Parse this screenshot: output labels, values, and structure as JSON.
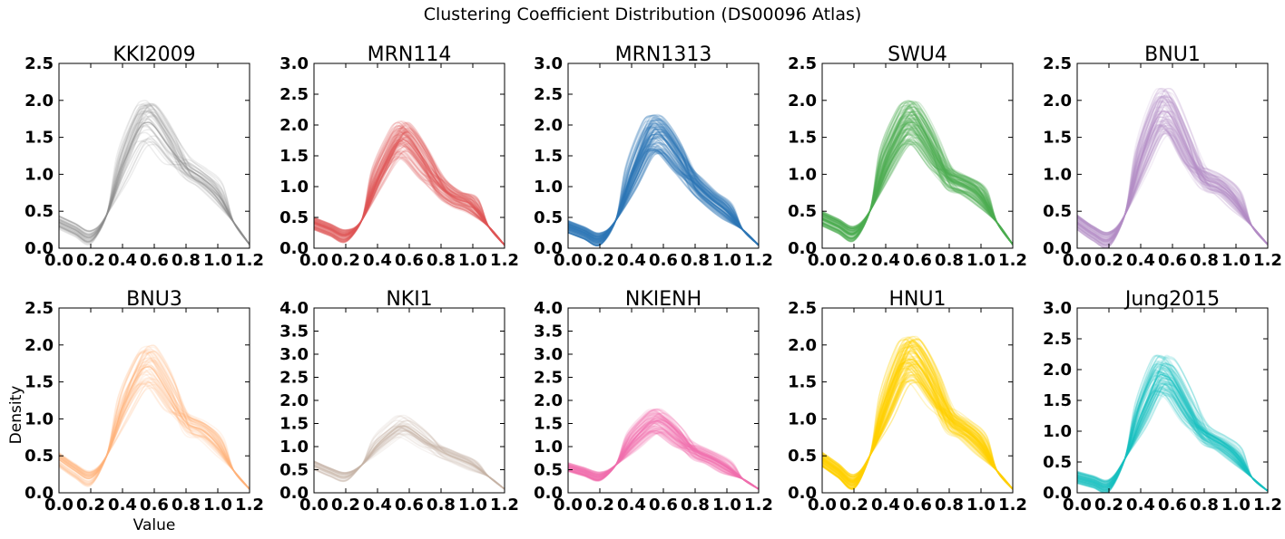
{
  "figure": {
    "title": "Clustering Coefficient Distribution (DS00096 Atlas)",
    "xlabel": "Value",
    "ylabel": "Density"
  },
  "chart_data": [
    {
      "type": "line",
      "title": "KKI2009",
      "color": "#8c8c8c",
      "xlim": [
        0,
        1.2
      ],
      "ylim": [
        0,
        2.5
      ],
      "xticks": [
        "0.0",
        "0.2",
        "0.4",
        "0.6",
        "0.8",
        "1.0",
        "1.2"
      ],
      "yticks": [
        "0.0",
        "0.5",
        "1.0",
        "1.5",
        "2.0",
        "2.5"
      ],
      "curve_count": 40,
      "typical_curve": {
        "x": [
          0,
          0.1,
          0.2,
          0.3,
          0.4,
          0.5,
          0.55,
          0.6,
          0.7,
          0.8,
          0.9,
          1.0,
          1.1,
          1.2
        ],
        "y": [
          0.35,
          0.25,
          0.15,
          0.45,
          1.1,
          1.6,
          1.7,
          1.65,
          1.35,
          1.1,
          0.95,
          0.75,
          0.35,
          0.05
        ]
      }
    },
    {
      "type": "line",
      "title": "MRN114",
      "color": "#e15759",
      "xlim": [
        0,
        1.2
      ],
      "ylim": [
        0,
        3.0
      ],
      "xticks": [
        "0.0",
        "0.2",
        "0.4",
        "0.6",
        "0.8",
        "1.0",
        "1.2"
      ],
      "yticks": [
        "0.0",
        "0.5",
        "1.0",
        "1.5",
        "2.0",
        "2.5",
        "3.0"
      ],
      "curve_count": 100,
      "typical_curve": {
        "x": [
          0,
          0.1,
          0.2,
          0.3,
          0.4,
          0.5,
          0.55,
          0.6,
          0.7,
          0.8,
          0.9,
          1.0,
          1.1,
          1.2
        ],
        "y": [
          0.4,
          0.3,
          0.2,
          0.45,
          1.1,
          1.6,
          1.75,
          1.7,
          1.35,
          1.0,
          0.8,
          0.7,
          0.35,
          0.05
        ]
      }
    },
    {
      "type": "line",
      "title": "MRN1313",
      "color": "#2e78b7",
      "xlim": [
        0,
        1.2
      ],
      "ylim": [
        0,
        3.0
      ],
      "xticks": [
        "0.0",
        "0.2",
        "0.4",
        "0.6",
        "0.8",
        "1.0",
        "1.2"
      ],
      "yticks": [
        "0.0",
        "0.5",
        "1.0",
        "1.5",
        "2.0",
        "2.5",
        "3.0"
      ],
      "curve_count": 1300,
      "typical_curve": {
        "x": [
          0,
          0.1,
          0.2,
          0.3,
          0.4,
          0.5,
          0.55,
          0.6,
          0.7,
          0.8,
          0.9,
          1.0,
          1.1,
          1.2
        ],
        "y": [
          0.35,
          0.25,
          0.15,
          0.45,
          1.15,
          1.75,
          1.85,
          1.8,
          1.45,
          1.05,
          0.8,
          0.6,
          0.3,
          0.05
        ]
      }
    },
    {
      "type": "line",
      "title": "SWU4",
      "color": "#4caf50",
      "xlim": [
        0,
        1.2
      ],
      "ylim": [
        0,
        2.5
      ],
      "xticks": [
        "0.0",
        "0.2",
        "0.4",
        "0.6",
        "0.8",
        "1.0",
        "1.2"
      ],
      "yticks": [
        "0.0",
        "0.5",
        "1.0",
        "1.5",
        "2.0",
        "2.5"
      ],
      "curve_count": 230,
      "typical_curve": {
        "x": [
          0,
          0.1,
          0.2,
          0.3,
          0.4,
          0.5,
          0.55,
          0.6,
          0.7,
          0.8,
          0.9,
          1.0,
          1.1,
          1.2
        ],
        "y": [
          0.4,
          0.3,
          0.2,
          0.5,
          1.15,
          1.6,
          1.7,
          1.65,
          1.3,
          0.95,
          0.85,
          0.7,
          0.35,
          0.05
        ]
      }
    },
    {
      "type": "line",
      "title": "BNU1",
      "color": "#b58cc7",
      "xlim": [
        0,
        1.2
      ],
      "ylim": [
        0,
        2.5
      ],
      "xticks": [
        "0.0",
        "0.2",
        "0.4",
        "0.6",
        "0.8",
        "1.0",
        "1.2"
      ],
      "yticks": [
        "0.0",
        "0.5",
        "1.0",
        "1.5",
        "2.0",
        "2.5"
      ],
      "curve_count": 110,
      "typical_curve": {
        "x": [
          0,
          0.1,
          0.2,
          0.3,
          0.4,
          0.5,
          0.55,
          0.6,
          0.7,
          0.8,
          0.9,
          1.0,
          1.1,
          1.2
        ],
        "y": [
          0.35,
          0.2,
          0.12,
          0.45,
          1.2,
          1.75,
          1.85,
          1.75,
          1.3,
          0.95,
          0.85,
          0.65,
          0.3,
          0.05
        ]
      }
    },
    {
      "type": "line",
      "title": "BNU3",
      "color": "#ffb27a",
      "xlim": [
        0,
        1.2
      ],
      "ylim": [
        0,
        2.5
      ],
      "xticks": [
        "0.0",
        "0.2",
        "0.4",
        "0.6",
        "0.8",
        "1.0",
        "1.2"
      ],
      "yticks": [
        "0.0",
        "0.5",
        "1.0",
        "1.5",
        "2.0",
        "2.5"
      ],
      "curve_count": 50,
      "typical_curve": {
        "x": [
          0,
          0.1,
          0.2,
          0.3,
          0.4,
          0.5,
          0.55,
          0.6,
          0.7,
          0.8,
          0.9,
          1.0,
          1.1,
          1.2
        ],
        "y": [
          0.45,
          0.3,
          0.2,
          0.5,
          1.15,
          1.6,
          1.7,
          1.65,
          1.3,
          0.95,
          0.85,
          0.65,
          0.3,
          0.05
        ]
      }
    },
    {
      "type": "line",
      "title": "NKI1",
      "color": "#c8b6a6",
      "xlim": [
        0,
        1.2
      ],
      "ylim": [
        0,
        4.0
      ],
      "xticks": [
        "0.0",
        "0.2",
        "0.4",
        "0.6",
        "0.8",
        "1.0",
        "1.2"
      ],
      "yticks": [
        "0.0",
        "0.5",
        "1.0",
        "1.5",
        "2.0",
        "2.5",
        "3.0",
        "3.5",
        "4.0"
      ],
      "curve_count": 40,
      "typical_curve": {
        "x": [
          0,
          0.1,
          0.2,
          0.3,
          0.4,
          0.5,
          0.55,
          0.6,
          0.7,
          0.8,
          0.9,
          1.0,
          1.1,
          1.2
        ],
        "y": [
          0.6,
          0.45,
          0.35,
          0.6,
          1.05,
          1.35,
          1.45,
          1.4,
          1.15,
          0.9,
          0.75,
          0.6,
          0.35,
          0.08
        ]
      }
    },
    {
      "type": "line",
      "title": "NKIENH",
      "color": "#f06fb0",
      "xlim": [
        0,
        1.2
      ],
      "ylim": [
        0,
        4.0
      ],
      "xticks": [
        "0.0",
        "0.2",
        "0.4",
        "0.6",
        "0.8",
        "1.0",
        "1.2"
      ],
      "yticks": [
        "0.0",
        "0.5",
        "1.0",
        "1.5",
        "2.0",
        "2.5",
        "3.0",
        "3.5",
        "4.0"
      ],
      "curve_count": 200,
      "typical_curve": {
        "x": [
          0,
          0.1,
          0.2,
          0.3,
          0.4,
          0.5,
          0.55,
          0.6,
          0.7,
          0.8,
          0.9,
          1.0,
          1.1,
          1.2
        ],
        "y": [
          0.55,
          0.45,
          0.35,
          0.6,
          1.1,
          1.45,
          1.55,
          1.5,
          1.2,
          0.9,
          0.75,
          0.55,
          0.3,
          0.08
        ]
      }
    },
    {
      "type": "line",
      "title": "HNU1",
      "color": "#ffd000",
      "xlim": [
        0,
        1.2
      ],
      "ylim": [
        0,
        2.5
      ],
      "xticks": [
        "0.0",
        "0.2",
        "0.4",
        "0.6",
        "0.8",
        "1.0",
        "1.2"
      ],
      "yticks": [
        "0.0",
        "0.5",
        "1.0",
        "1.5",
        "2.0",
        "2.5"
      ],
      "curve_count": 300,
      "typical_curve": {
        "x": [
          0,
          0.1,
          0.2,
          0.3,
          0.4,
          0.5,
          0.55,
          0.6,
          0.7,
          0.8,
          0.9,
          1.0,
          1.1,
          1.2
        ],
        "y": [
          0.45,
          0.3,
          0.15,
          0.5,
          1.15,
          1.7,
          1.8,
          1.75,
          1.4,
          1.0,
          0.85,
          0.65,
          0.3,
          0.05
        ]
      }
    },
    {
      "type": "line",
      "title": "Jung2015",
      "color": "#17c3c3",
      "xlim": [
        0,
        1.2
      ],
      "ylim": [
        0,
        3.0
      ],
      "xticks": [
        "0.0",
        "0.2",
        "0.4",
        "0.6",
        "0.8",
        "1.0",
        "1.2"
      ],
      "yticks": [
        "0.0",
        "0.5",
        "1.0",
        "1.5",
        "2.0",
        "2.5",
        "3.0"
      ],
      "curve_count": 100,
      "typical_curve": {
        "x": [
          0,
          0.1,
          0.2,
          0.3,
          0.4,
          0.5,
          0.55,
          0.6,
          0.7,
          0.8,
          0.9,
          1.0,
          1.1,
          1.2
        ],
        "y": [
          0.25,
          0.18,
          0.12,
          0.55,
          1.25,
          1.85,
          1.9,
          1.8,
          1.35,
          0.95,
          0.8,
          0.6,
          0.25,
          0.03
        ]
      }
    }
  ]
}
